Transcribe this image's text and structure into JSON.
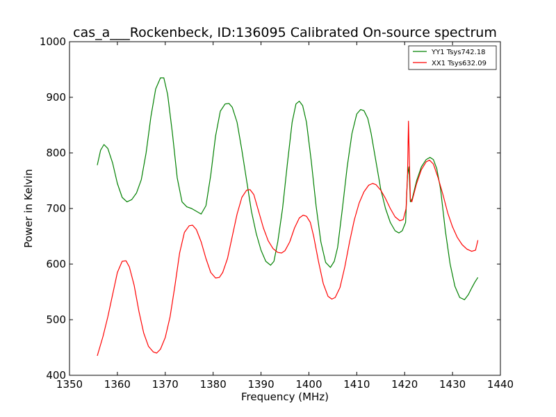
{
  "chart_data": {
    "type": "line",
    "title": "cas_a___Rockenbeck, ID:136095 Calibrated On-source spectrum",
    "xlabel": "Frequency (MHz)",
    "ylabel": "Power in Kelvin",
    "xlim": [
      1350,
      1440
    ],
    "ylim": [
      400,
      1000
    ],
    "xticks": [
      1350,
      1360,
      1370,
      1380,
      1390,
      1400,
      1410,
      1420,
      1430,
      1440
    ],
    "yticks": [
      400,
      500,
      600,
      700,
      800,
      900,
      1000
    ],
    "grid": false,
    "legend_position": "top-right",
    "series": [
      {
        "name": "YY1 Tsys742.18",
        "color": "#008000",
        "points": [
          [
            1355.8,
            778
          ],
          [
            1356.5,
            805
          ],
          [
            1357.2,
            815
          ],
          [
            1358.0,
            808
          ],
          [
            1359.0,
            782
          ],
          [
            1360.0,
            745
          ],
          [
            1361.0,
            720
          ],
          [
            1362.0,
            712
          ],
          [
            1363.0,
            716
          ],
          [
            1364.0,
            728
          ],
          [
            1365.0,
            752
          ],
          [
            1366.0,
            800
          ],
          [
            1367.0,
            865
          ],
          [
            1368.0,
            915
          ],
          [
            1369.0,
            935
          ],
          [
            1369.7,
            935
          ],
          [
            1370.5,
            905
          ],
          [
            1371.5,
            835
          ],
          [
            1372.5,
            755
          ],
          [
            1373.5,
            712
          ],
          [
            1374.5,
            703
          ],
          [
            1375.5,
            700
          ],
          [
            1376.5,
            695
          ],
          [
            1377.5,
            690
          ],
          [
            1378.5,
            705
          ],
          [
            1379.5,
            760
          ],
          [
            1380.5,
            830
          ],
          [
            1381.5,
            875
          ],
          [
            1382.5,
            888
          ],
          [
            1383.3,
            889
          ],
          [
            1384.0,
            882
          ],
          [
            1385.0,
            855
          ],
          [
            1386.0,
            805
          ],
          [
            1387.0,
            750
          ],
          [
            1388.0,
            695
          ],
          [
            1389.0,
            655
          ],
          [
            1390.0,
            625
          ],
          [
            1391.0,
            605
          ],
          [
            1392.0,
            598
          ],
          [
            1392.7,
            605
          ],
          [
            1393.5,
            640
          ],
          [
            1394.5,
            700
          ],
          [
            1395.5,
            780
          ],
          [
            1396.5,
            855
          ],
          [
            1397.3,
            888
          ],
          [
            1398.0,
            893
          ],
          [
            1398.7,
            885
          ],
          [
            1399.5,
            855
          ],
          [
            1400.5,
            785
          ],
          [
            1401.5,
            705
          ],
          [
            1402.5,
            640
          ],
          [
            1403.5,
            603
          ],
          [
            1404.5,
            594
          ],
          [
            1405.3,
            605
          ],
          [
            1406.0,
            630
          ],
          [
            1407.0,
            700
          ],
          [
            1408.0,
            775
          ],
          [
            1409.0,
            835
          ],
          [
            1410.0,
            870
          ],
          [
            1410.8,
            878
          ],
          [
            1411.5,
            876
          ],
          [
            1412.3,
            862
          ],
          [
            1413.0,
            835
          ],
          [
            1414.0,
            785
          ],
          [
            1415.0,
            735
          ],
          [
            1416.0,
            700
          ],
          [
            1417.0,
            675
          ],
          [
            1418.0,
            660
          ],
          [
            1418.8,
            656
          ],
          [
            1419.5,
            660
          ],
          [
            1420.2,
            675
          ],
          [
            1420.6,
            760
          ],
          [
            1420.9,
            775
          ],
          [
            1421.2,
            712
          ],
          [
            1421.6,
            718
          ],
          [
            1422.5,
            750
          ],
          [
            1423.5,
            775
          ],
          [
            1424.5,
            788
          ],
          [
            1425.3,
            792
          ],
          [
            1426.0,
            788
          ],
          [
            1426.7,
            772
          ],
          [
            1427.5,
            735
          ],
          [
            1428.5,
            660
          ],
          [
            1429.5,
            600
          ],
          [
            1430.5,
            560
          ],
          [
            1431.5,
            540
          ],
          [
            1432.5,
            536
          ],
          [
            1433.3,
            545
          ],
          [
            1434.0,
            557
          ],
          [
            1434.7,
            568
          ],
          [
            1435.3,
            576
          ]
        ]
      },
      {
        "name": "XX1 Tsys632.09",
        "color": "#ff0000",
        "points": [
          [
            1355.8,
            435
          ],
          [
            1357.0,
            470
          ],
          [
            1358.0,
            505
          ],
          [
            1359.0,
            545
          ],
          [
            1360.0,
            585
          ],
          [
            1361.0,
            605
          ],
          [
            1361.8,
            606
          ],
          [
            1362.5,
            595
          ],
          [
            1363.5,
            562
          ],
          [
            1364.5,
            515
          ],
          [
            1365.5,
            476
          ],
          [
            1366.5,
            452
          ],
          [
            1367.5,
            442
          ],
          [
            1368.2,
            440
          ],
          [
            1369.0,
            447
          ],
          [
            1370.0,
            468
          ],
          [
            1371.0,
            505
          ],
          [
            1372.0,
            560
          ],
          [
            1373.0,
            620
          ],
          [
            1374.0,
            657
          ],
          [
            1375.0,
            669
          ],
          [
            1375.7,
            670
          ],
          [
            1376.5,
            662
          ],
          [
            1377.5,
            640
          ],
          [
            1378.5,
            610
          ],
          [
            1379.5,
            585
          ],
          [
            1380.5,
            575
          ],
          [
            1381.3,
            576
          ],
          [
            1382.0,
            585
          ],
          [
            1383.0,
            610
          ],
          [
            1384.0,
            650
          ],
          [
            1385.0,
            690
          ],
          [
            1386.0,
            720
          ],
          [
            1387.0,
            733
          ],
          [
            1387.7,
            734
          ],
          [
            1388.5,
            725
          ],
          [
            1389.5,
            695
          ],
          [
            1390.5,
            665
          ],
          [
            1391.5,
            642
          ],
          [
            1392.5,
            628
          ],
          [
            1393.5,
            621
          ],
          [
            1394.3,
            620
          ],
          [
            1395.0,
            624
          ],
          [
            1396.0,
            640
          ],
          [
            1397.0,
            665
          ],
          [
            1398.0,
            683
          ],
          [
            1398.8,
            688
          ],
          [
            1399.5,
            686
          ],
          [
            1400.3,
            675
          ],
          [
            1401.0,
            650
          ],
          [
            1402.0,
            605
          ],
          [
            1403.0,
            565
          ],
          [
            1404.0,
            542
          ],
          [
            1404.8,
            537
          ],
          [
            1405.5,
            540
          ],
          [
            1406.5,
            558
          ],
          [
            1407.5,
            595
          ],
          [
            1408.5,
            640
          ],
          [
            1409.5,
            680
          ],
          [
            1410.5,
            710
          ],
          [
            1411.5,
            730
          ],
          [
            1412.5,
            742
          ],
          [
            1413.3,
            745
          ],
          [
            1414.0,
            743
          ],
          [
            1415.0,
            733
          ],
          [
            1416.0,
            718
          ],
          [
            1417.0,
            700
          ],
          [
            1418.0,
            685
          ],
          [
            1419.0,
            678
          ],
          [
            1419.7,
            680
          ],
          [
            1420.3,
            700
          ],
          [
            1420.6,
            760
          ],
          [
            1420.8,
            857
          ],
          [
            1421.0,
            780
          ],
          [
            1421.2,
            716
          ],
          [
            1421.5,
            712
          ],
          [
            1422.5,
            745
          ],
          [
            1423.5,
            770
          ],
          [
            1424.5,
            784
          ],
          [
            1425.2,
            787
          ],
          [
            1426.0,
            780
          ],
          [
            1427.0,
            755
          ],
          [
            1428.0,
            725
          ],
          [
            1429.0,
            692
          ],
          [
            1430.0,
            667
          ],
          [
            1431.0,
            648
          ],
          [
            1432.0,
            635
          ],
          [
            1433.0,
            627
          ],
          [
            1434.0,
            623
          ],
          [
            1434.8,
            625
          ],
          [
            1435.3,
            643
          ]
        ]
      }
    ]
  }
}
